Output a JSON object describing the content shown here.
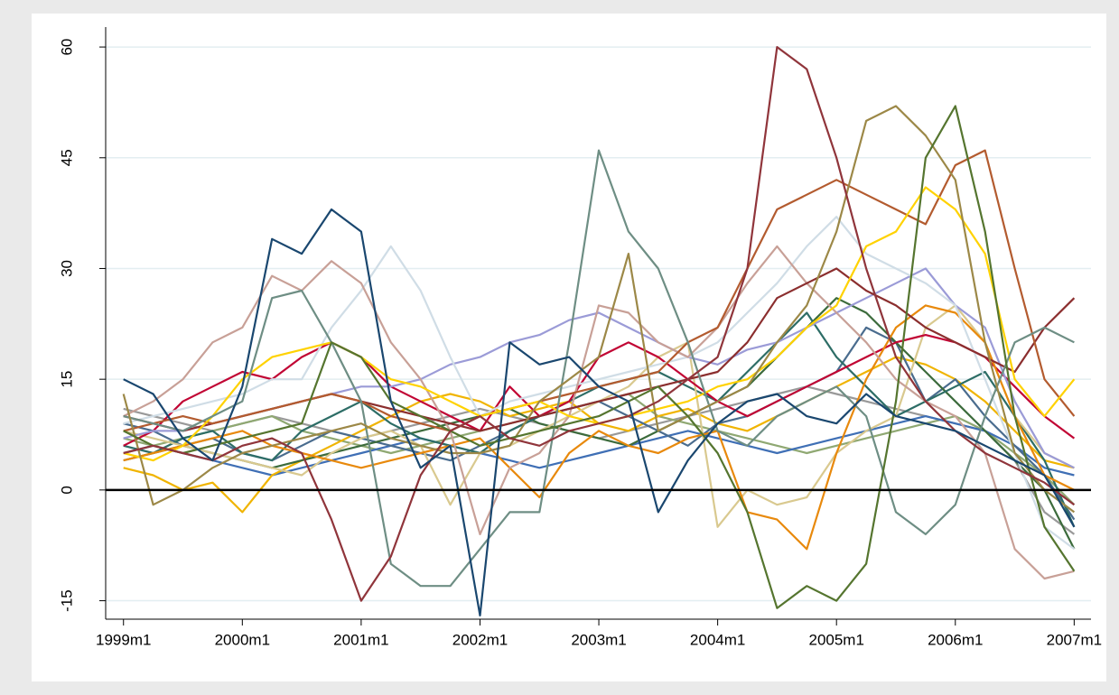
{
  "chart_data": {
    "type": "line",
    "x": [
      468,
      471,
      474,
      477,
      480,
      483,
      486,
      489,
      492,
      495,
      498,
      501,
      504,
      507,
      510,
      513,
      516,
      519,
      522,
      525,
      528,
      531,
      534,
      537,
      540,
      543,
      546,
      549,
      552,
      555,
      558,
      561,
      564
    ],
    "xlim": [
      466.2,
      565.7
    ],
    "xticks": [
      {
        "value": 468,
        "label": "1999m1"
      },
      {
        "value": 480,
        "label": "2000m1"
      },
      {
        "value": 492,
        "label": "2001m1"
      },
      {
        "value": 504,
        "label": "2002m1"
      },
      {
        "value": 516,
        "label": "2003m1"
      },
      {
        "value": 528,
        "label": "2004m1"
      },
      {
        "value": 540,
        "label": "2005m1"
      },
      {
        "value": 552,
        "label": "2006m1"
      },
      {
        "value": 564,
        "label": "2007m1"
      }
    ],
    "ylim": [
      -17.5,
      62.7
    ],
    "yticks": [
      -15,
      0,
      15,
      30,
      45,
      60
    ],
    "grid": true,
    "zero_line": true,
    "series": [
      {
        "color": "#999999",
        "values": [
          11,
          10,
          9,
          8,
          9,
          10,
          9,
          8,
          7,
          8,
          9,
          10,
          11,
          10,
          9,
          8,
          7,
          8,
          9,
          10,
          11,
          12,
          13,
          14,
          13,
          12,
          11,
          10,
          9,
          8,
          4,
          -3,
          -6
        ]
      },
      {
        "color": "#8fa872",
        "values": [
          7,
          6,
          7,
          8,
          9,
          10,
          8,
          7,
          6,
          5,
          6,
          7,
          8,
          9,
          10,
          11,
          12,
          13,
          10,
          9,
          8,
          7,
          6,
          5,
          6,
          7,
          8,
          9,
          10,
          8,
          5,
          2,
          -2
        ]
      },
      {
        "color": "#3f6fb5",
        "values": [
          5,
          6,
          5,
          4,
          3,
          2,
          3,
          4,
          5,
          6,
          7,
          6,
          5,
          4,
          3,
          4,
          5,
          6,
          7,
          8,
          7,
          6,
          5,
          6,
          7,
          8,
          9,
          10,
          9,
          8,
          6,
          3,
          2
        ]
      },
      {
        "color": "#f0b400",
        "values": [
          3,
          2,
          0,
          1,
          -3,
          2,
          4,
          6,
          8,
          10,
          12,
          13,
          12,
          10,
          11,
          12,
          9,
          8,
          10,
          11,
          9,
          8,
          10,
          12,
          14,
          16,
          18,
          17,
          15,
          12,
          8,
          4,
          3
        ]
      },
      {
        "color": "#4a6c8e",
        "values": [
          9,
          8,
          6,
          7,
          5,
          4,
          6,
          8,
          7,
          6,
          5,
          4,
          6,
          8,
          10,
          11,
          12,
          10,
          8,
          6,
          9,
          10,
          12,
          14,
          16,
          22,
          20,
          12,
          15,
          10,
          6,
          2,
          -4
        ]
      },
      {
        "color": "#3c6b3c",
        "values": [
          4,
          5,
          6,
          5,
          4,
          3,
          4,
          5,
          6,
          7,
          8,
          9,
          10,
          11,
          9,
          8,
          7,
          6,
          8,
          10,
          12,
          14,
          18,
          22,
          26,
          24,
          20,
          16,
          12,
          8,
          4,
          0,
          -8
        ]
      },
      {
        "color": "#2d6d66",
        "values": [
          6,
          5,
          7,
          8,
          5,
          4,
          8,
          10,
          12,
          9,
          7,
          6,
          5,
          8,
          10,
          12,
          14,
          15,
          16,
          14,
          12,
          16,
          20,
          24,
          18,
          14,
          10,
          12,
          14,
          16,
          10,
          4,
          -5
        ]
      },
      {
        "color": "#d9c98f",
        "values": [
          8,
          7,
          6,
          5,
          4,
          3,
          2,
          5,
          7,
          8,
          6,
          -2,
          5,
          6,
          8,
          10,
          12,
          14,
          18,
          20,
          -5,
          0,
          -2,
          -1,
          5,
          8,
          10,
          22,
          25,
          20,
          10,
          5,
          3
        ]
      },
      {
        "color": "#c10534",
        "values": [
          6,
          8,
          12,
          14,
          16,
          15,
          18,
          20,
          18,
          14,
          12,
          10,
          8,
          14,
          10,
          12,
          18,
          20,
          18,
          15,
          12,
          10,
          12,
          14,
          16,
          18,
          20,
          21,
          20,
          18,
          14,
          10,
          7
        ]
      },
      {
        "color": "#e8890c",
        "values": [
          4,
          5,
          6,
          7,
          8,
          6,
          5,
          4,
          3,
          4,
          5,
          6,
          7,
          3,
          -1,
          5,
          8,
          6,
          5,
          7,
          8,
          -3,
          -4,
          -8,
          5,
          15,
          22,
          25,
          24,
          20,
          10,
          2,
          0
        ]
      },
      {
        "color": "#9b9bd7",
        "values": [
          7,
          8,
          8,
          9,
          10,
          11,
          12,
          13,
          14,
          14,
          15,
          17,
          18,
          20,
          21,
          23,
          24,
          22,
          20,
          18,
          17,
          19,
          20,
          22,
          24,
          26,
          28,
          30,
          25,
          22,
          12,
          5,
          3
        ]
      },
      {
        "color": "#d0dde6",
        "values": [
          9,
          10,
          11,
          12,
          13,
          15,
          15,
          22,
          27,
          33,
          27,
          18,
          10,
          12,
          13,
          14,
          15,
          16,
          17,
          18,
          20,
          24,
          28,
          33,
          37,
          32,
          30,
          28,
          25,
          15,
          5,
          -5,
          -8
        ]
      },
      {
        "color": "#c8a097",
        "values": [
          10,
          12,
          15,
          20,
          22,
          29,
          27,
          31,
          28,
          20,
          15,
          8,
          -6,
          3,
          5,
          10,
          25,
          24,
          20,
          18,
          22,
          28,
          33,
          28,
          24,
          20,
          15,
          12,
          10,
          5,
          -8,
          -12,
          -11
        ]
      },
      {
        "color": "#8b2e2e",
        "values": [
          10,
          9,
          8,
          9,
          10,
          11,
          12,
          13,
          12,
          11,
          10,
          9,
          8,
          9,
          10,
          11,
          12,
          13,
          14,
          15,
          16,
          20,
          26,
          28,
          30,
          27,
          25,
          22,
          20,
          18,
          16,
          22,
          26
        ]
      },
      {
        "color": "#b35b2f",
        "values": [
          8,
          9,
          10,
          9,
          10,
          11,
          12,
          13,
          12,
          10,
          9,
          8,
          10,
          11,
          12,
          13,
          14,
          15,
          16,
          20,
          22,
          30,
          38,
          40,
          42,
          40,
          38,
          36,
          44,
          46,
          30,
          15,
          10
        ]
      },
      {
        "color": "#ffd200",
        "values": [
          5,
          4,
          6,
          10,
          15,
          18,
          19,
          20,
          18,
          15,
          14,
          12,
          10,
          11,
          12,
          10,
          9,
          10,
          11,
          12,
          14,
          15,
          18,
          22,
          25,
          33,
          35,
          41,
          38,
          32,
          15,
          10,
          15
        ]
      },
      {
        "color": "#6e8e84",
        "values": [
          10,
          9,
          8,
          10,
          12,
          26,
          27,
          20,
          12,
          -10,
          -13,
          -13,
          -8,
          -3,
          -3,
          20,
          46,
          35,
          30,
          20,
          8,
          6,
          10,
          12,
          14,
          10,
          -3,
          -6,
          -2,
          10,
          20,
          22,
          20
        ]
      },
      {
        "color": "#9c8847",
        "values": [
          13,
          -2,
          0,
          3,
          5,
          6,
          7,
          8,
          9,
          7,
          6,
          5,
          5,
          6,
          12,
          15,
          18,
          32,
          8,
          10,
          12,
          14,
          20,
          25,
          35,
          50,
          52,
          48,
          42,
          20,
          5,
          0,
          -3
        ]
      },
      {
        "color": "#55752f",
        "values": [
          8,
          6,
          5,
          6,
          7,
          8,
          9,
          20,
          18,
          12,
          10,
          8,
          6,
          7,
          8,
          9,
          10,
          12,
          14,
          10,
          5,
          -3,
          -16,
          -13,
          -15,
          -10,
          12,
          45,
          52,
          35,
          10,
          -5,
          -11
        ]
      },
      {
        "color": "#90353b",
        "values": [
          5,
          6,
          5,
          4,
          6,
          7,
          5,
          -4,
          -15,
          -9,
          2,
          8,
          10,
          7,
          6,
          8,
          9,
          10,
          12,
          15,
          18,
          30,
          60,
          57,
          45,
          30,
          18,
          12,
          8,
          5,
          3,
          1,
          -2
        ]
      },
      {
        "color": "#1a476f",
        "values": [
          15,
          13,
          7,
          4,
          14,
          34,
          32,
          38,
          35,
          12,
          3,
          6,
          -17,
          20,
          17,
          18,
          14,
          12,
          -3,
          4,
          9,
          12,
          13,
          10,
          9,
          13,
          10,
          9,
          8,
          6,
          4,
          2,
          -5
        ]
      }
    ]
  }
}
